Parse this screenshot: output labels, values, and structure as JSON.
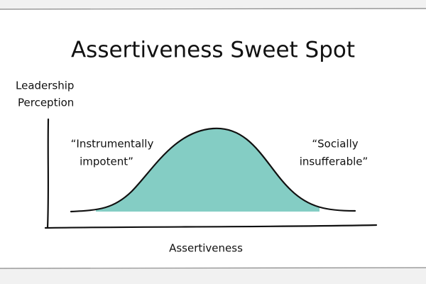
{
  "header": {
    "title": "Assertiveness Sweet Spot"
  },
  "axes": {
    "y_label": [
      "Leadership",
      "Perception"
    ],
    "x_label": "Assertiveness"
  },
  "annotations": [
    {
      "lines": [
        "“Instrumentally",
        "impotent”"
      ]
    },
    {
      "lines": [
        "“Socially",
        "insufferable”"
      ]
    }
  ]
}
